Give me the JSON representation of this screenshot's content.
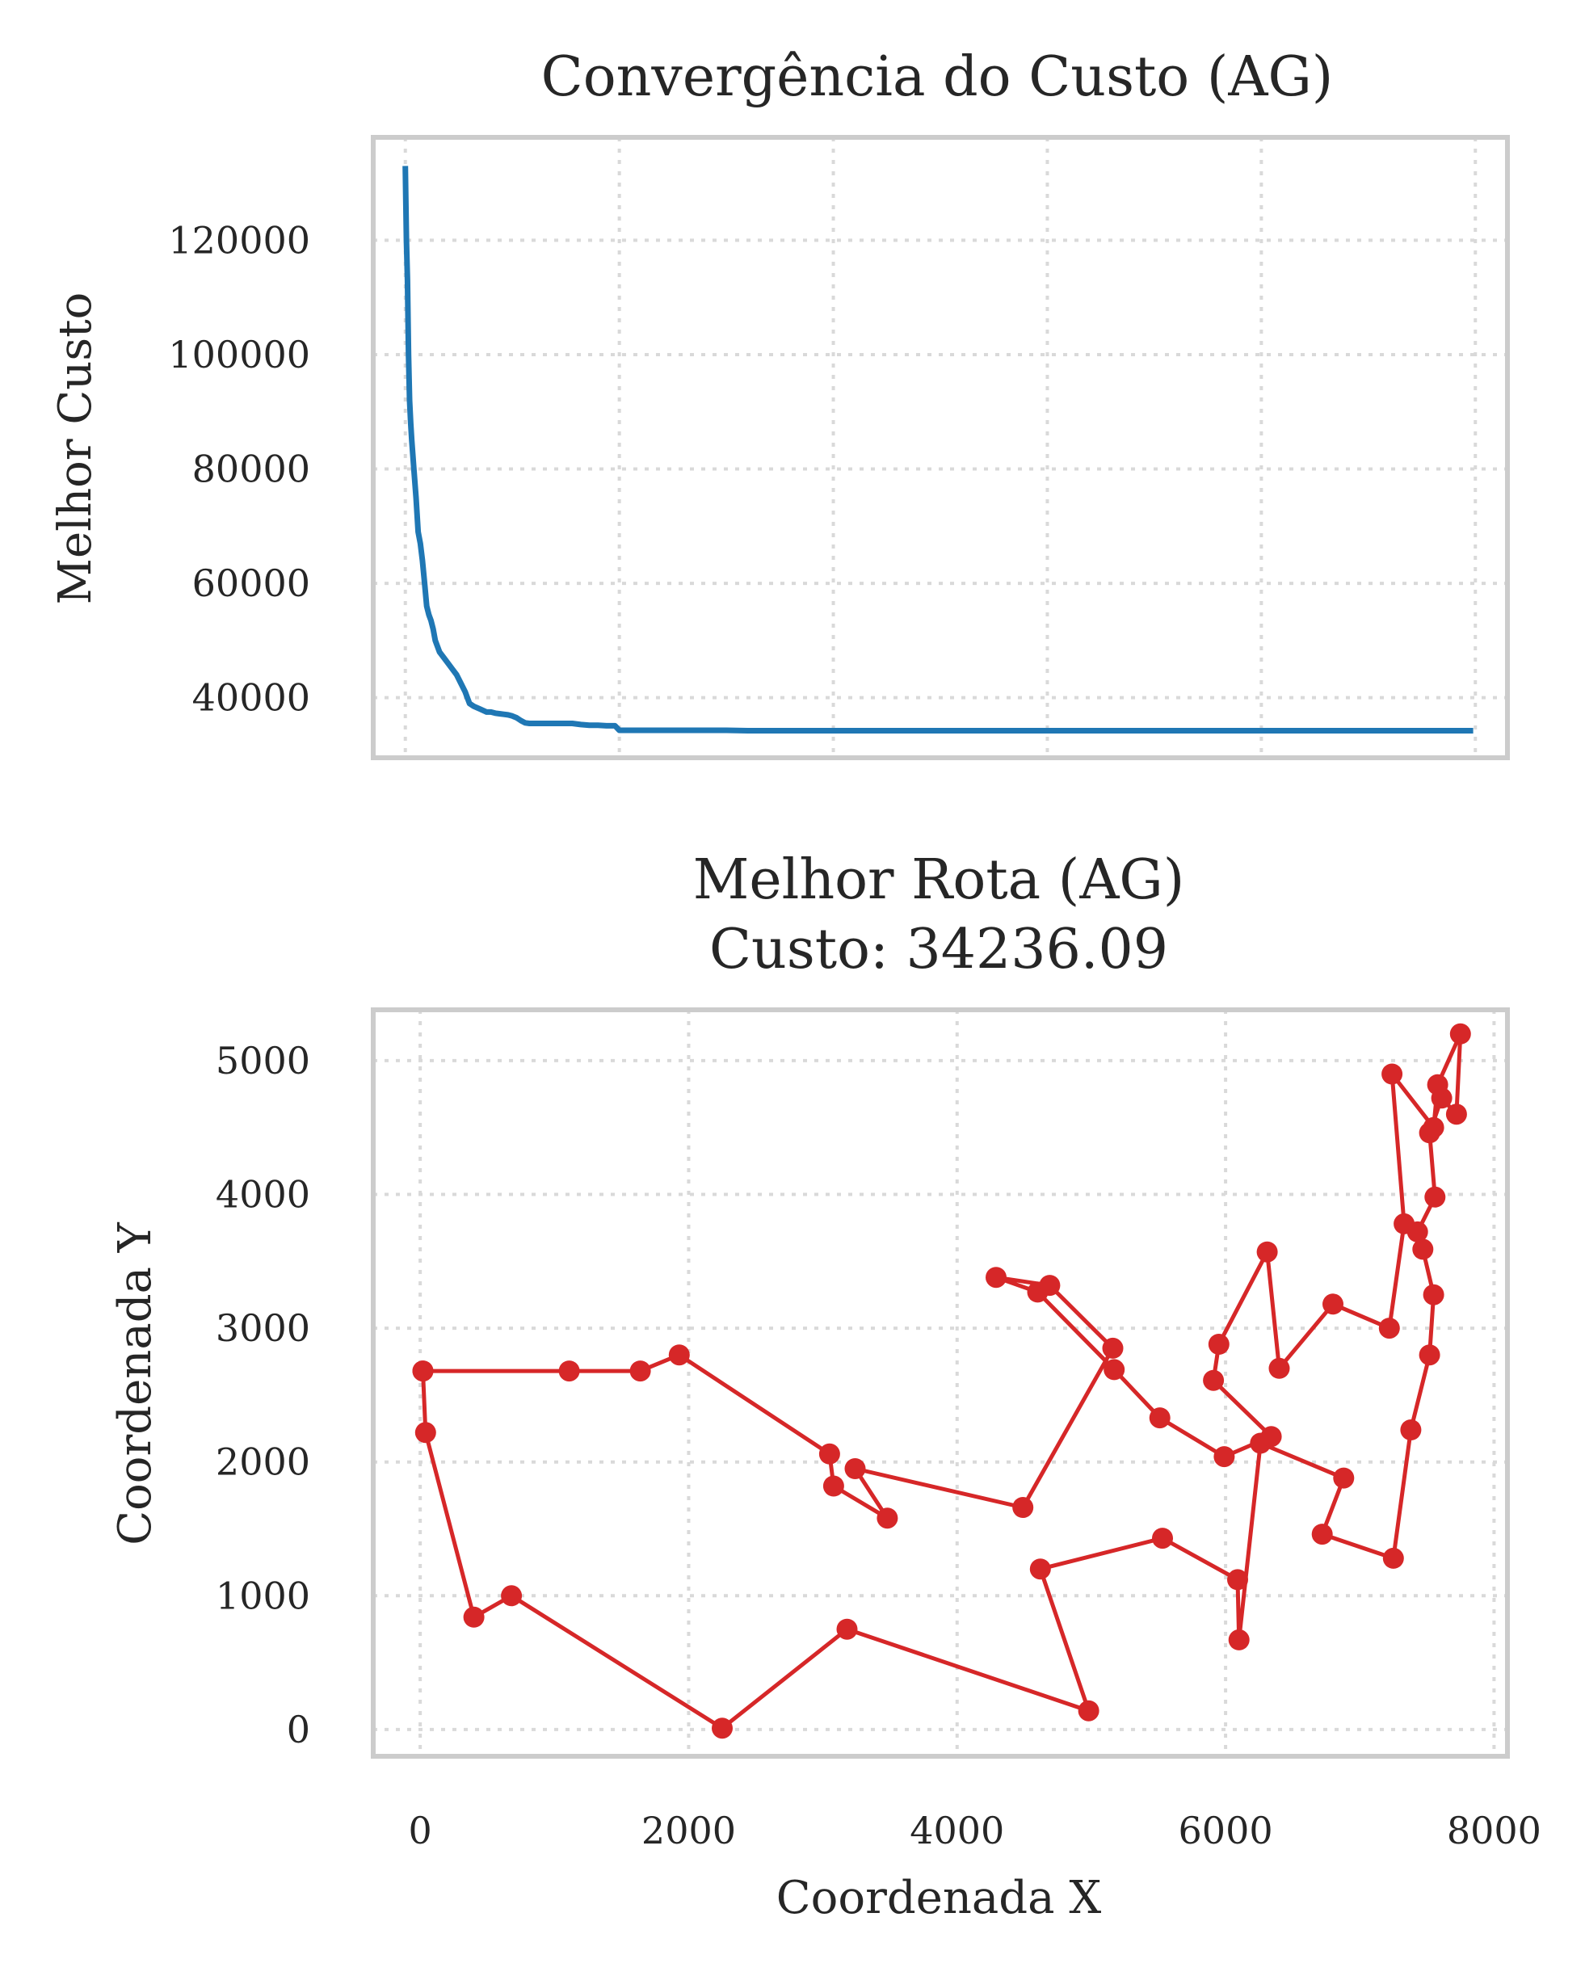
{
  "chart_data": [
    {
      "type": "line",
      "title": "Convergência do Custo (AG)",
      "xlabel": "",
      "ylabel": "Melhor Custo",
      "xlim": [
        -150,
        5150
      ],
      "ylim": [
        29500,
        138000
      ],
      "xticks": [
        0,
        1000,
        2000,
        3000,
        4000,
        5000
      ],
      "yticks": [
        40000,
        60000,
        80000,
        100000,
        120000
      ],
      "ytick_labels": [
        "40000",
        "60000",
        "80000",
        "100000",
        "120000"
      ],
      "grid": true,
      "color": "#1f77b4",
      "series": [
        {
          "x": [
            0,
            5,
            10,
            15,
            20,
            25,
            30,
            40,
            50,
            60,
            70,
            80,
            90,
            100,
            110,
            120,
            130,
            140,
            160,
            180,
            200,
            220,
            240,
            260,
            280,
            300,
            320,
            350,
            380,
            400,
            420,
            440,
            460,
            480,
            500,
            520,
            540,
            560,
            580,
            600,
            620,
            640,
            660,
            680,
            700,
            720,
            740,
            780,
            820,
            860,
            900,
            940,
            980,
            1000,
            1020,
            1060,
            1100,
            1150,
            1200,
            1250,
            1300,
            1350,
            1400,
            1500,
            1600,
            1700,
            1800,
            1900,
            2000,
            2500,
            3000,
            3500,
            4000,
            4500,
            4990
          ],
          "y": [
            133000,
            120000,
            113000,
            100000,
            92000,
            88000,
            85000,
            80000,
            75000,
            69000,
            67000,
            64000,
            60000,
            56000,
            54500,
            53500,
            52000,
            50000,
            48000,
            47000,
            46000,
            45000,
            44000,
            42500,
            41000,
            39000,
            38500,
            38000,
            37500,
            37500,
            37300,
            37200,
            37100,
            37000,
            36800,
            36500,
            36000,
            35600,
            35500,
            35500,
            35500,
            35500,
            35500,
            35500,
            35500,
            35500,
            35500,
            35500,
            35300,
            35200,
            35200,
            35100,
            35100,
            34300,
            34300,
            34300,
            34300,
            34300,
            34300,
            34300,
            34300,
            34300,
            34300,
            34300,
            34236,
            34236,
            34236,
            34236,
            34236,
            34236,
            34236,
            34236,
            34236,
            34236,
            34236
          ]
        }
      ]
    },
    {
      "type": "line",
      "title": "Melhor Rota (AG)",
      "subtitle": "Custo: 34236.09",
      "xlabel": "Coordenada X",
      "ylabel": "Coordenada Y",
      "xlim": [
        -350,
        8100
      ],
      "ylim": [
        -200,
        5380
      ],
      "xticks": [
        0,
        2000,
        4000,
        6000,
        8000
      ],
      "xtick_labels": [
        "0",
        "2000",
        "4000",
        "6000",
        "8000"
      ],
      "yticks": [
        0,
        1000,
        2000,
        3000,
        4000,
        5000
      ],
      "ytick_labels": [
        "0",
        "1000",
        "2000",
        "3000",
        "4000",
        "5000"
      ],
      "grid": true,
      "color": "#d62728",
      "series": [
        {
          "x": [
            20,
            40,
            400,
            680,
            2250,
            3180,
            4980,
            4620,
            5530,
            6090,
            6100,
            6260,
            6880,
            6720,
            7250,
            7380,
            7520,
            7550,
            7470,
            7430,
            7560,
            7520,
            7610,
            7720,
            7750,
            7580,
            7550,
            7240,
            7330,
            7220,
            6800,
            6400,
            6310,
            5950,
            5910,
            6340,
            5990,
            5510,
            5170,
            4600,
            4290,
            4690,
            5160,
            4490,
            3240,
            3480,
            3080,
            3050,
            1930,
            1640,
            1110,
            20
          ],
          "y": [
            2680,
            2220,
            840,
            1000,
            10,
            750,
            140,
            1200,
            1430,
            1120,
            670,
            2140,
            1880,
            1460,
            1280,
            2240,
            2800,
            3250,
            3590,
            3720,
            3980,
            4460,
            4720,
            4600,
            5200,
            4820,
            4500,
            4900,
            3780,
            3000,
            3180,
            2700,
            3570,
            2880,
            2610,
            2190,
            2040,
            2330,
            2690,
            3270,
            3380,
            3320,
            2850,
            1660,
            1950,
            1580,
            1820,
            2060,
            2800,
            2680,
            2680,
            2680
          ]
        }
      ]
    }
  ]
}
